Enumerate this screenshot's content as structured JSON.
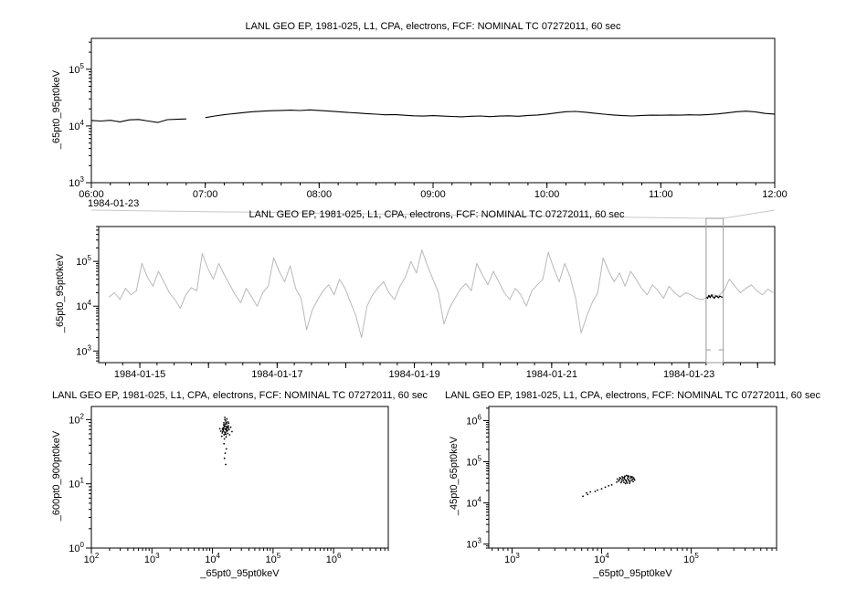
{
  "palette": {
    "foreground": "#000000",
    "overview_line": "#b9b9b9",
    "selection_box": "#9a9a9a",
    "connector": "#c8c8c8",
    "background": "#ffffff"
  },
  "chart_data": [
    {
      "id": "top-timeseries",
      "type": "line",
      "title": "LANL GEO EP, 1981-025, L1, CPA, electrons, FCF: NOMINAL TC 07272011, 60 sec",
      "ylabel": "_65pt0_95pt0keV",
      "context_date": "1984-01-23",
      "xscale": "linear",
      "yscale": "log",
      "xlim": [
        6,
        12
      ],
      "ylim": [
        1000,
        350000
      ],
      "x_minor": 0.1666667,
      "xticks": [
        {
          "v": 6,
          "label": "06:00"
        },
        {
          "v": 7,
          "label": "07:00"
        },
        {
          "v": 8,
          "label": "08:00"
        },
        {
          "v": 9,
          "label": "09:00"
        },
        {
          "v": 10,
          "label": "10:00"
        },
        {
          "v": 11,
          "label": "11:00"
        },
        {
          "v": 12,
          "label": "12:00"
        }
      ],
      "series": [
        {
          "name": "electron-flux-65-95keV",
          "color": "#000000",
          "width": 1.1,
          "x_start": 6,
          "x_step": 0.0833333,
          "y": [
            12500,
            12200,
            12600,
            11800,
            12800,
            13000,
            12200,
            11500,
            12900,
            13100,
            13300,
            null,
            14000,
            15000,
            15800,
            16500,
            17200,
            17800,
            18200,
            18600,
            18800,
            19000,
            18700,
            19200,
            18800,
            18300,
            17800,
            17300,
            16900,
            16500,
            16100,
            15700,
            15900,
            15400,
            15100,
            14900,
            15200,
            14900,
            14700,
            14500,
            14800,
            15000,
            14600,
            14900,
            15100,
            14800,
            15300,
            15600,
            16200,
            17000,
            17800,
            18000,
            17500,
            16800,
            16100,
            15600,
            15200,
            15000,
            15300,
            15500,
            15400,
            15600,
            15500,
            15700,
            15600,
            15900,
            16300,
            17000,
            17800,
            18200,
            17600,
            16600,
            16200
          ]
        }
      ]
    },
    {
      "id": "overview-timeseries",
      "type": "line",
      "title": "LANL GEO EP, 1981-025, L1, CPA, electrons, FCF: NOMINAL TC 07272011, 60 sec",
      "ylabel": "_65pt0_95pt0keV",
      "xscale": "linear",
      "yscale": "log",
      "xlim": [
        14.4,
        24.25
      ],
      "ylim": [
        550,
        600000
      ],
      "x_minor": 0.25,
      "xticks": [
        {
          "v": 15,
          "label": "1984-01-15"
        },
        {
          "v": 16,
          "label": ""
        },
        {
          "v": 17,
          "label": "1984-01-17"
        },
        {
          "v": 18,
          "label": ""
        },
        {
          "v": 19,
          "label": "1984-01-19"
        },
        {
          "v": 20,
          "label": ""
        },
        {
          "v": 21,
          "label": "1984-01-21"
        },
        {
          "v": 22,
          "label": ""
        },
        {
          "v": 23,
          "label": "1984-01-23"
        },
        {
          "v": 24,
          "label": ""
        }
      ],
      "context_box": {
        "x0": 23.25,
        "x1": 23.5
      },
      "series": [
        {
          "name": "overview-flux-65-95keV",
          "color": "#b9b9b9",
          "width": 1,
          "x_start": 14.55,
          "x_step": 0.08,
          "y": [
            16000,
            20000,
            14000,
            25000,
            18000,
            22000,
            90000,
            45000,
            28000,
            60000,
            35000,
            20000,
            14000,
            9000,
            18000,
            26000,
            22000,
            150000,
            70000,
            40000,
            90000,
            50000,
            30000,
            18000,
            12000,
            25000,
            16000,
            10000,
            20000,
            28000,
            120000,
            60000,
            35000,
            80000,
            25000,
            15000,
            3000,
            8000,
            14000,
            22000,
            30000,
            18000,
            40000,
            25000,
            12000,
            6000,
            2000,
            10000,
            18000,
            26000,
            35000,
            20000,
            14000,
            28000,
            45000,
            100000,
            55000,
            180000,
            80000,
            40000,
            20000,
            4000,
            9000,
            15000,
            24000,
            32000,
            22000,
            90000,
            50000,
            30000,
            60000,
            35000,
            20000,
            14000,
            25000,
            18000,
            10000,
            22000,
            30000,
            40000,
            160000,
            70000,
            35000,
            90000,
            45000,
            15000,
            2500,
            6000,
            12000,
            20000,
            120000,
            60000,
            35000,
            55000,
            28000,
            60000,
            40000,
            25000,
            18000,
            30000,
            22000,
            15000,
            28000,
            20000,
            16000,
            20000,
            18000,
            15000,
            14000,
            16000,
            18000,
            17000,
            22000,
            40000,
            28000,
            20000,
            25000,
            30000,
            22000,
            18000,
            24000,
            20000
          ]
        },
        {
          "name": "selected-interval-highlight",
          "color": "#000000",
          "width": 1.2,
          "x_start": 23.25,
          "x_step": 0.02,
          "y": [
            16000,
            15000,
            17500,
            15500,
            18000,
            16000,
            15000,
            17000,
            16500,
            15500,
            16800,
            16200,
            15800
          ]
        }
      ]
    },
    {
      "id": "scatter-600-900",
      "type": "scatter",
      "title": "LANL GEO EP, 1981-025, L1, CPA, electrons, FCF: NOMINAL TC 07272011, 60 sec",
      "xlabel": "_65pt0_95pt0keV",
      "ylabel": "_600pt0_900pt0keV",
      "xscale": "log",
      "yscale": "log",
      "xlim": [
        100,
        8000000
      ],
      "ylim": [
        1,
        160
      ],
      "points": [
        [
          16000,
          72
        ],
        [
          17500,
          68
        ],
        [
          15200,
          75
        ],
        [
          18200,
          80
        ],
        [
          14800,
          65
        ],
        [
          16800,
          90
        ],
        [
          15500,
          58
        ],
        [
          17000,
          73
        ],
        [
          16200,
          85
        ],
        [
          18800,
          70
        ],
        [
          14500,
          62
        ],
        [
          15800,
          78
        ],
        [
          17200,
          66
        ],
        [
          16500,
          95
        ],
        [
          15000,
          70
        ],
        [
          17800,
          74
        ],
        [
          16100,
          60
        ],
        [
          18500,
          88
        ],
        [
          15600,
          81
        ],
        [
          16900,
          69
        ],
        [
          14200,
          55
        ],
        [
          17400,
          77
        ],
        [
          16300,
          71
        ],
        [
          15900,
          64
        ],
        [
          18000,
          92
        ],
        [
          16700,
          59
        ],
        [
          15300,
          83
        ],
        [
          17600,
          67
        ],
        [
          16000,
          100
        ],
        [
          14900,
          73
        ],
        [
          15700,
          50
        ],
        [
          17100,
          86
        ],
        [
          16400,
          63
        ],
        [
          18300,
          75
        ],
        [
          15100,
          68
        ],
        [
          16600,
          79
        ],
        [
          17900,
          61
        ],
        [
          15400,
          89
        ],
        [
          16800,
          54
        ],
        [
          14600,
          71
        ],
        [
          20000,
          76
        ],
        [
          13800,
          66
        ],
        [
          19200,
          58
        ],
        [
          13200,
          72
        ],
        [
          21000,
          65
        ],
        [
          16200,
          30
        ],
        [
          15800,
          25
        ],
        [
          17000,
          35
        ],
        [
          16500,
          20
        ],
        [
          15500,
          42
        ],
        [
          16000,
          108
        ],
        [
          17300,
          102
        ]
      ]
    },
    {
      "id": "scatter-45-65",
      "type": "scatter",
      "title": "LANL GEO EP, 1981-025, L1, CPA, electrons, FCF: NOMINAL TC 07272011, 60 sec",
      "xlabel": "_65pt0_95pt0keV",
      "ylabel": "_45pt0_65pt0keV",
      "xscale": "log",
      "yscale": "log",
      "xlim": [
        550,
        900000
      ],
      "ylim": [
        800,
        2200000
      ],
      "points": [
        [
          18000,
          42000
        ],
        [
          20000,
          45000
        ],
        [
          22000,
          43000
        ],
        [
          23000,
          38000
        ],
        [
          22500,
          33000
        ],
        [
          20500,
          30000
        ],
        [
          18500,
          29500
        ],
        [
          16500,
          31000
        ],
        [
          15500,
          34000
        ],
        [
          15000,
          38000
        ],
        [
          16000,
          41000
        ],
        [
          17000,
          43000
        ],
        [
          18500,
          36000
        ],
        [
          19500,
          39000
        ],
        [
          17500,
          35000
        ],
        [
          21000,
          40000
        ],
        [
          19000,
          33000
        ],
        [
          20000,
          36500
        ],
        [
          18000,
          38500
        ],
        [
          21500,
          35500
        ],
        [
          17000,
          37500
        ],
        [
          19800,
          42500
        ],
        [
          16800,
          33500
        ],
        [
          22800,
          40500
        ],
        [
          15800,
          36500
        ],
        [
          20800,
          32500
        ],
        [
          18200,
          44500
        ],
        [
          21200,
          44000
        ],
        [
          14800,
          32000
        ],
        [
          23500,
          36000
        ],
        [
          19300,
          30500
        ],
        [
          17800,
          31500
        ],
        [
          12000,
          26000
        ],
        [
          10000,
          22000
        ],
        [
          8500,
          19000
        ],
        [
          7000,
          16000
        ],
        [
          6200,
          14500
        ],
        [
          9000,
          20500
        ],
        [
          11000,
          24000
        ],
        [
          13000,
          27500
        ],
        [
          6800,
          17500
        ],
        [
          7500,
          18500
        ],
        [
          19000,
          46500
        ],
        [
          21800,
          41500
        ],
        [
          16200,
          39500
        ],
        [
          20300,
          34200
        ],
        [
          17400,
          40800
        ],
        [
          22200,
          37200
        ],
        [
          18800,
          34800
        ],
        [
          19600,
          44800
        ]
      ]
    }
  ]
}
